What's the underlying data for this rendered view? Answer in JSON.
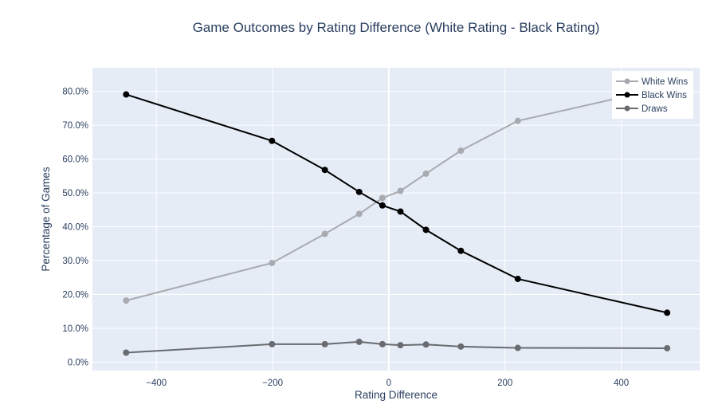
{
  "chart_data": {
    "type": "line",
    "title": "Game Outcomes by Rating Difference (White Rating - Black Rating)",
    "xlabel": "Rating Difference",
    "ylabel": "Percentage of Games",
    "xlim": [
      -510,
      535
    ],
    "ylim": [
      -2.5,
      87
    ],
    "x_ticks": [
      -400,
      -200,
      0,
      200,
      400
    ],
    "x_tick_labels": [
      "−400",
      "−200",
      "0",
      "200",
      "400"
    ],
    "y_ticks": [
      0,
      10,
      20,
      30,
      40,
      50,
      60,
      70,
      80
    ],
    "y_tick_labels": [
      "0.0%",
      "10.0%",
      "20.0%",
      "30.0%",
      "40.0%",
      "50.0%",
      "60.0%",
      "70.0%",
      "80.0%"
    ],
    "grid": true,
    "legend_position": "top-right",
    "x": [
      -452,
      -201,
      -110,
      -51,
      -11,
      20,
      64,
      124,
      222,
      479
    ],
    "series": [
      {
        "name": "White Wins",
        "color": "#a9a9b0",
        "values": [
          18.2,
          29.3,
          37.9,
          43.8,
          48.5,
          50.6,
          55.7,
          62.5,
          71.3,
          81.3
        ]
      },
      {
        "name": "Black Wins",
        "color": "#000000",
        "values": [
          79.1,
          65.4,
          56.8,
          50.3,
          46.3,
          44.5,
          39.1,
          32.9,
          24.6,
          14.6
        ]
      },
      {
        "name": "Draws",
        "color": "#696b70",
        "values": [
          2.8,
          5.3,
          5.3,
          6.0,
          5.3,
          5.0,
          5.2,
          4.6,
          4.2,
          4.1
        ]
      }
    ]
  }
}
